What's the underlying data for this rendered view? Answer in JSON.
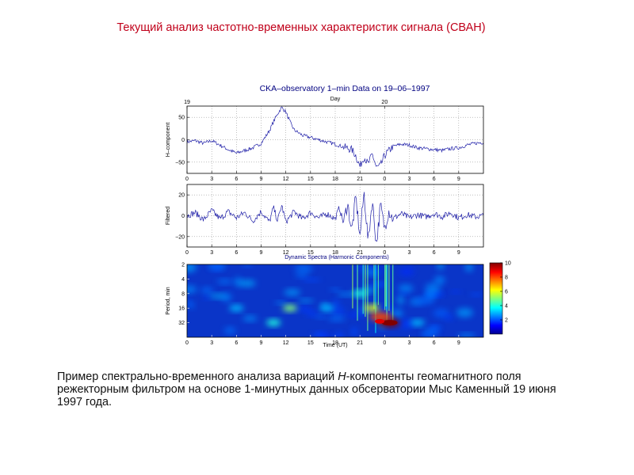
{
  "header": {
    "title": "Текущий анализ частотно-временных характеристик сигнала (СВАН)"
  },
  "caption": {
    "prefix": "Пример спектрально-временного анализа вариаций ",
    "italic": "H",
    "suffix": "-компоненты геомагнитного поля режекторным фильтром на основе 1-минутных данных обсерватории Мыс Каменный 19 июня 1997 года."
  },
  "colors": {
    "title": "#c0001a",
    "trace": "#1f1fa8",
    "axis": "#000000",
    "grid": "#808080",
    "spectrum_background": "#0a35c8"
  },
  "chart_data": [
    {
      "type": "line",
      "title": "CKA–observatory 1–min Data on 19–06–1997",
      "top_axis_label": "Day",
      "top_ticks": [
        "19",
        "20"
      ],
      "ylabel": "H–component",
      "yticks": [
        "50",
        "0",
        "−50"
      ],
      "ylim": [
        -75,
        75
      ],
      "xlabel": "",
      "xticks": [
        "0",
        "3",
        "6",
        "9",
        "12",
        "15",
        "18",
        "21",
        "0",
        "3",
        "6",
        "9"
      ],
      "xlim": [
        0,
        36
      ],
      "grid": true,
      "series": [
        {
          "x": [
            0,
            1,
            2,
            3,
            4,
            5,
            6,
            7,
            8,
            9,
            10,
            10.5,
            11,
            11.5,
            12,
            12.5,
            13,
            14,
            15,
            16,
            17,
            18,
            19,
            20,
            20.5,
            21,
            21.5,
            22,
            22.5,
            23,
            23.5,
            24,
            25,
            26,
            27,
            28,
            29,
            30,
            31,
            32,
            33,
            34,
            35,
            36
          ],
          "y": [
            -5,
            -2,
            -8,
            -2,
            -12,
            -22,
            -30,
            -24,
            -18,
            -8,
            20,
            40,
            58,
            72,
            62,
            40,
            22,
            10,
            5,
            0,
            -5,
            -10,
            -16,
            -22,
            -35,
            -60,
            -38,
            -55,
            -32,
            -62,
            -58,
            -35,
            -15,
            -10,
            -12,
            -18,
            -20,
            -22,
            -24,
            -20,
            -18,
            -12,
            -8,
            -6
          ]
        }
      ]
    },
    {
      "type": "line",
      "ylabel": "Filtered",
      "yticks": [
        "20",
        "0",
        "−20"
      ],
      "ylim": [
        -30,
        30
      ],
      "xticks": [
        "0",
        "3",
        "6",
        "9",
        "12",
        "15",
        "18",
        "21",
        "0",
        "3",
        "6",
        "9"
      ],
      "xlim": [
        0,
        36
      ],
      "grid": true,
      "series": [
        {
          "x": [
            0,
            1,
            2,
            3,
            4,
            5,
            6,
            7,
            8,
            9,
            10,
            10.5,
            11,
            11.5,
            12,
            13,
            14,
            15,
            16,
            17,
            18,
            18.5,
            19,
            19.5,
            20,
            20.5,
            21,
            21.5,
            22,
            22.5,
            23,
            23.5,
            24,
            24.5,
            25,
            26,
            27,
            28,
            29,
            30,
            31,
            32,
            33,
            34,
            35,
            36
          ],
          "y": [
            0,
            3,
            -4,
            5,
            -3,
            4,
            -2,
            3,
            -5,
            4,
            -6,
            8,
            -5,
            10,
            -6,
            4,
            -3,
            3,
            -2,
            2,
            -3,
            8,
            -7,
            12,
            -15,
            18,
            -20,
            22,
            -25,
            15,
            -28,
            10,
            -12,
            5,
            -3,
            2,
            -2,
            1,
            -1,
            2,
            -1,
            3,
            -2,
            1,
            -1,
            0
          ]
        }
      ]
    },
    {
      "type": "heatmap",
      "title": "Dynamic Spectra (Harmonic Components)",
      "ylabel": "Period, min",
      "yticks": [
        "2",
        "4",
        "8",
        "16",
        "32"
      ],
      "xlabel": "Time (UT)",
      "xticks": [
        "0",
        "3",
        "6",
        "9",
        "12",
        "15",
        "18",
        "21",
        "0",
        "3",
        "6",
        "9"
      ],
      "xlim": [
        0,
        36
      ],
      "colorbar": {
        "ticks": [
          "10",
          "8",
          "6",
          "4",
          "2"
        ],
        "range": [
          0,
          10
        ]
      },
      "features": [
        {
          "x": 24.5,
          "period": 32,
          "value": 10
        },
        {
          "x": 23.5,
          "period": 24,
          "value": 8
        },
        {
          "x": 22.5,
          "period": 16,
          "value": 6
        },
        {
          "x": 12.5,
          "period": 16,
          "value": 5
        },
        {
          "x": 10.5,
          "period": 32,
          "value": 4
        },
        {
          "x": 21,
          "period": 8,
          "value": 4
        },
        {
          "x": 6,
          "period": 16,
          "value": 3
        },
        {
          "x": 17,
          "period": 16,
          "value": 3
        },
        {
          "x": 28,
          "period": 32,
          "value": 3
        }
      ]
    }
  ]
}
